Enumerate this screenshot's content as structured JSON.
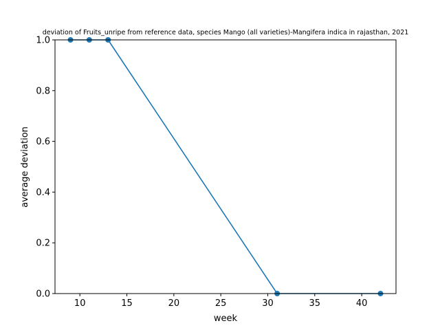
{
  "chart_data": {
    "type": "line",
    "title": "deviation of Fruits_unripe from reference data, species Mango (all varieties)-Mangifera indica in rajasthan, 2021",
    "xlabel": "week",
    "ylabel": "average deviation",
    "xlim": [
      7.35,
      43.65
    ],
    "ylim": [
      0,
      1.0
    ],
    "xticks": [
      10,
      15,
      20,
      25,
      30,
      35,
      40
    ],
    "yticks": [
      0.0,
      0.2,
      0.4,
      0.6,
      0.8,
      1.0
    ],
    "xtick_labels": [
      "10",
      "15",
      "20",
      "25",
      "30",
      "35",
      "40"
    ],
    "ytick_labels": [
      "0.0",
      "0.2",
      "0.4",
      "0.6",
      "0.8",
      "1.0"
    ],
    "grid": false,
    "series": [
      {
        "color": "#1f77b4",
        "marker": "circle",
        "x": [
          9,
          11,
          13,
          31,
          42
        ],
        "y": [
          1.0,
          1.0,
          1.0,
          0.0,
          0.0
        ]
      }
    ]
  }
}
